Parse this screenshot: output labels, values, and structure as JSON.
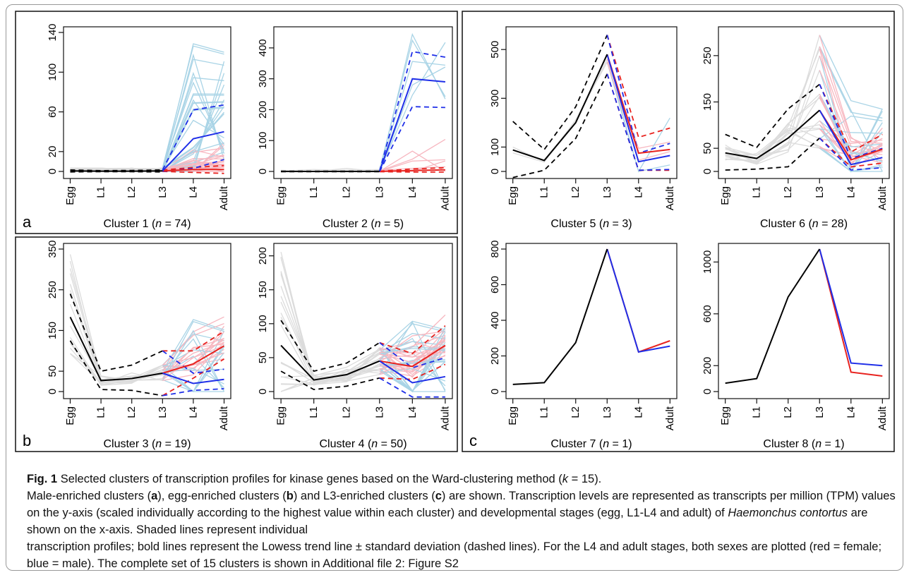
{
  "panel_letters": [
    "a",
    "b",
    "c"
  ],
  "caption": {
    "lead": "Fig. 1",
    "title_pre": "Selected clusters of transcription profiles for kinase genes based on the Ward-clustering method (",
    "title_k": "k",
    "title_post": " = 15).",
    "s1a": "Male-enriched clusters (",
    "s1b": "a",
    "s1c": "), egg-enriched clusters (",
    "s1d": "b",
    "s1e": ") and L3-enriched clusters (",
    "s1f": "c",
    "s1g": ") are shown. Transcription levels are represented as transcripts per million (TPM) values on the y-axis (scaled individually according to the highest value within each cluster) and developmental stages (egg, L1-L4 and adult) of ",
    "s1h": "Haemonchus contortus",
    "s1i": " are shown on the x-axis. Shaded lines represent individual",
    "s2": "transcription profiles; bold lines represent the Lowess trend line ± standard deviation (dashed lines). For the L4 and adult stages, both sexes are plotted (red = female; blue = male). The complete set of 15 clusters is shown in Additional file 2: Figure S2"
  },
  "colors": {
    "female": "#e8231f",
    "male": "#1f2fe8",
    "female_shade": "#f7b7c0",
    "male_shade": "#a9d4e6",
    "shade": "#dcdcdc",
    "trend": "#000000"
  },
  "chart_data": [
    {
      "type": "line",
      "panel": "a",
      "label_pre": "Cluster 1 (",
      "label_n": "n",
      "label_post": " = 74)",
      "categories": [
        "Egg",
        "L1",
        "L2",
        "L3",
        "L4",
        "Adult"
      ],
      "ylim": [
        0,
        140
      ],
      "yticks": [
        0,
        20,
        60,
        100,
        140
      ],
      "trend_shared": [
        0.5,
        0.3,
        0.3,
        0.5
      ],
      "trend_shared_upper": [
        1.5,
        0.8,
        1.0,
        1.5
      ],
      "trend_shared_lower": [
        -0.5,
        -0.2,
        -0.3,
        -0.5
      ],
      "male": [
        0.5,
        33,
        40
      ],
      "male_upper": [
        1.5,
        62,
        67
      ],
      "male_lower": [
        0,
        3,
        12
      ],
      "female": [
        0.5,
        2,
        2
      ],
      "female_upper": [
        1.5,
        4,
        6
      ],
      "female_lower": [
        0,
        -1,
        -2
      ],
      "shade_peak": 135,
      "shade_count": 24
    },
    {
      "type": "line",
      "panel": "a",
      "label_pre": "Cluster 2 (",
      "label_n": "n",
      "label_post": " = 5)",
      "categories": [
        "Egg",
        "L1",
        "L2",
        "L3",
        "L4",
        "Adult"
      ],
      "ylim": [
        0,
        450
      ],
      "yticks": [
        0,
        100,
        200,
        300,
        400
      ],
      "trend_shared": [
        0,
        0,
        0,
        0
      ],
      "trend_shared_upper": [
        1,
        1,
        1,
        1
      ],
      "trend_shared_lower": [
        -1,
        -1,
        -1,
        -1
      ],
      "male": [
        0,
        300,
        290
      ],
      "male_upper": [
        1,
        388,
        370
      ],
      "male_lower": [
        -1,
        210,
        207
      ],
      "female": [
        0,
        3,
        5
      ],
      "female_upper": [
        1,
        8,
        12
      ],
      "female_lower": [
        -1,
        -2,
        -2
      ],
      "shade_peak": 445,
      "shade_count": 5
    },
    {
      "type": "line",
      "panel": "b",
      "label_pre": "Cluster 3 (",
      "label_n": "n",
      "label_post": " = 19)",
      "categories": [
        "Egg",
        "L1",
        "L2",
        "L3",
        "L4",
        "Adult"
      ],
      "ylim": [
        0,
        350
      ],
      "yticks": [
        0,
        50,
        150,
        250,
        350
      ],
      "trend_shared": [
        183,
        27,
        32,
        45
      ],
      "trend_shared_upper": [
        240,
        50,
        65,
        100
      ],
      "trend_shared_lower": [
        125,
        5,
        3,
        -10
      ],
      "male": [
        45,
        20,
        30
      ],
      "male_upper": [
        100,
        45,
        55
      ],
      "male_lower": [
        -10,
        3,
        7
      ],
      "female": [
        45,
        68,
        112
      ],
      "female_upper": [
        100,
        100,
        148
      ],
      "female_lower": [
        -10,
        33,
        80
      ],
      "shade_peak": 340,
      "shade_count": 14
    },
    {
      "type": "line",
      "panel": "b",
      "label_pre": "Cluster 4 (",
      "label_n": "n",
      "label_post": " = 50)",
      "categories": [
        "Egg",
        "L1",
        "L2",
        "L3",
        "L4",
        "Adult"
      ],
      "ylim": [
        0,
        210
      ],
      "yticks": [
        0,
        50,
        100,
        150,
        200
      ],
      "trend_shared": [
        68,
        17,
        25,
        45
      ],
      "trend_shared_upper": [
        105,
        30,
        42,
        72
      ],
      "trend_shared_lower": [
        30,
        3,
        8,
        20
      ],
      "male": [
        45,
        13,
        22
      ],
      "male_upper": [
        72,
        35,
        50
      ],
      "male_lower": [
        20,
        -8,
        -8
      ],
      "female": [
        45,
        37,
        68
      ],
      "female_upper": [
        72,
        56,
        97
      ],
      "female_lower": [
        20,
        18,
        40
      ],
      "shade_peak": 210,
      "shade_count": 22
    },
    {
      "type": "line",
      "panel": "c",
      "label_pre": "Cluster 5 (",
      "label_n": "n",
      "label_post": " = 3)",
      "categories": [
        "Egg",
        "L1",
        "L2",
        "L3",
        "L4",
        "Adult"
      ],
      "ylim": [
        0,
        570
      ],
      "yticks": [
        0,
        100,
        300,
        500
      ],
      "trend_shared": [
        88,
        45,
        200,
        480
      ],
      "trend_shared_upper": [
        205,
        90,
        265,
        560
      ],
      "trend_shared_lower": [
        -25,
        5,
        135,
        400
      ],
      "male": [
        480,
        40,
        65
      ],
      "male_upper": [
        560,
        75,
        115
      ],
      "male_lower": [
        400,
        5,
        8
      ],
      "female": [
        480,
        75,
        90
      ],
      "female_upper": [
        560,
        140,
        178
      ],
      "female_lower": [
        400,
        5,
        5
      ],
      "shade_peak": 560,
      "shade_count": 2
    },
    {
      "type": "line",
      "panel": "c",
      "label_pre": "Cluster 6 (",
      "label_n": "n",
      "label_post": " = 28)",
      "categories": [
        "Egg",
        "L1",
        "L2",
        "L3",
        "L4",
        "Adult"
      ],
      "ylim": [
        0,
        300
      ],
      "yticks": [
        0,
        50,
        150,
        250
      ],
      "trend_shared": [
        40,
        28,
        72,
        132
      ],
      "trend_shared_upper": [
        80,
        52,
        135,
        188
      ],
      "trend_shared_lower": [
        3,
        5,
        10,
        72
      ],
      "male": [
        132,
        15,
        30
      ],
      "male_upper": [
        188,
        28,
        50
      ],
      "male_lower": [
        72,
        3,
        8
      ],
      "female": [
        132,
        25,
        48
      ],
      "female_upper": [
        188,
        42,
        80
      ],
      "female_lower": [
        72,
        10,
        18
      ],
      "shade_peak": 300,
      "shade_count": 16
    },
    {
      "type": "line",
      "panel": "c",
      "label_pre": "Cluster 7 (",
      "label_n": "n",
      "label_post": " = 1)",
      "categories": [
        "Egg",
        "L1",
        "L2",
        "L3",
        "L4",
        "Adult"
      ],
      "ylim": [
        0,
        800
      ],
      "yticks": [
        0,
        200,
        400,
        600,
        800
      ],
      "trend_shared": [
        40,
        50,
        275,
        800
      ],
      "male": [
        800,
        222,
        255
      ],
      "female": [
        800,
        222,
        285
      ]
    },
    {
      "type": "line",
      "panel": "c",
      "label_pre": "Cluster 8 (",
      "label_n": "n",
      "label_post": " = 1)",
      "categories": [
        "Egg",
        "L1",
        "L2",
        "L3",
        "L4",
        "Adult"
      ],
      "ylim": [
        0,
        1100
      ],
      "yticks": [
        0,
        200,
        600,
        1000
      ],
      "trend_shared": [
        65,
        100,
        730,
        1100
      ],
      "male": [
        1100,
        220,
        200
      ],
      "female": [
        1100,
        150,
        120
      ]
    }
  ]
}
